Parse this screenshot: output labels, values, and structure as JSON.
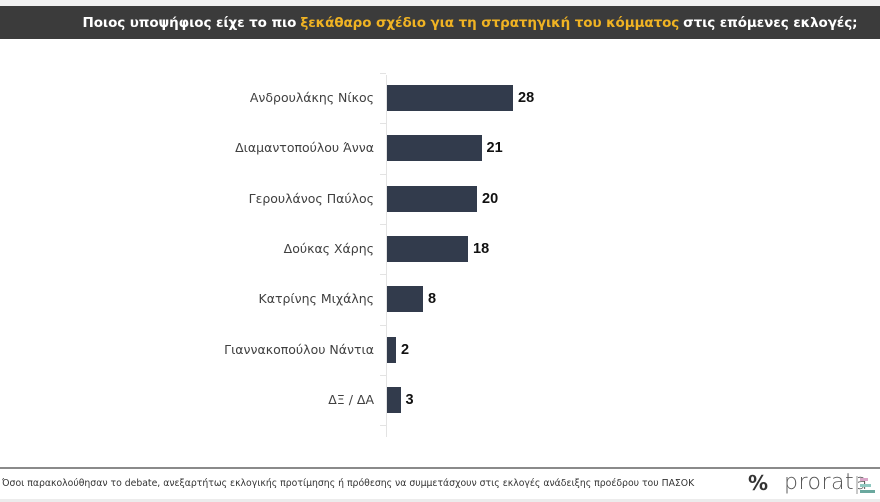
{
  "header": {
    "title_pre": "Ποιος υποψήφιος είχε το πιο",
    "title_highlight": "ξεκάθαρο σχέδιο για τη στρατηγική του κόμματος",
    "title_post": "στις επόμενες εκλογές;",
    "highlight_color": "#f0b323",
    "background_color": "#3b3b3b"
  },
  "chart_data": {
    "type": "bar",
    "orientation": "horizontal",
    "title": "Ποιος υποψήφιος είχε το πιο ξεκάθαρο σχέδιο για τη στρατηγική του κόμματος στις επόμενες εκλογές;",
    "categories": [
      "Ανδρουλάκης Νίκος",
      "Διαμαντοπούλου Άννα",
      "Γερουλάνος Παύλος",
      "Δούκας Χάρης",
      "Κατρίνης Μιχάλης",
      "Γιαννακοπούλου Νάντια",
      "ΔΞ / ΔΑ"
    ],
    "values": [
      28,
      21,
      20,
      18,
      8,
      2,
      3
    ],
    "value_labels": [
      "28",
      "21",
      "20",
      "18",
      "8",
      "2",
      "3"
    ],
    "xlabel": "",
    "ylabel": "",
    "grid": false,
    "legend": null,
    "bar_color": "#323b4c",
    "xlim": [
      0,
      30
    ]
  },
  "footer": {
    "note": "Όσοι παρακολούθησαν το debate, ανεξαρτήτως εκλογικής προτίμησης ή πρόθεσης να συμμετάσχουν στις εκλογές ανάδειξης προέδρου του ΠΑΣΟΚ",
    "percent_symbol": "%",
    "brand": "prorata",
    "brand_mark_colors": [
      "#d9a6c8",
      "#8fc8c0",
      "#6aa89e"
    ]
  }
}
